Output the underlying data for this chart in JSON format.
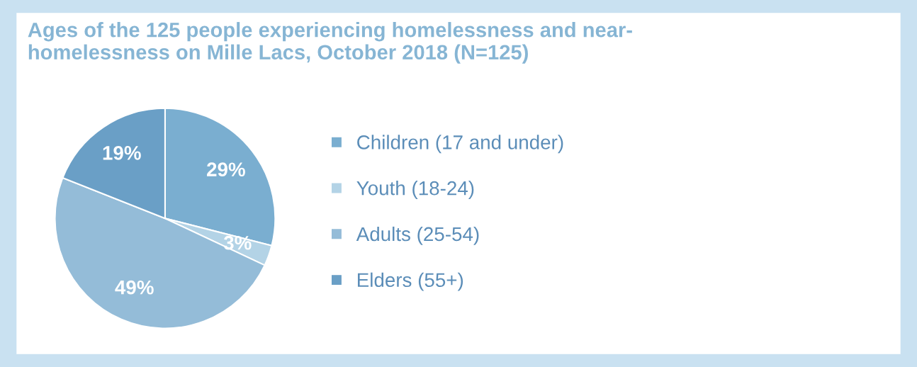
{
  "chart_data": {
    "type": "pie",
    "title": "Ages of the 125 people experiencing homelessness and near-\nhomelessness on Mille Lacs, October 2018 (N=125)",
    "categories": [
      "Children (17 and under)",
      "Youth (18-24)",
      "Adults (25-54)",
      "Elders (55+)"
    ],
    "values": [
      29,
      3,
      49,
      19
    ],
    "colors": [
      "#7aaed0",
      "#b3d3e6",
      "#94bcd8",
      "#6a9fc6"
    ],
    "value_labels": [
      "29%",
      "3%",
      "49%",
      "19%"
    ],
    "legend": "right"
  }
}
